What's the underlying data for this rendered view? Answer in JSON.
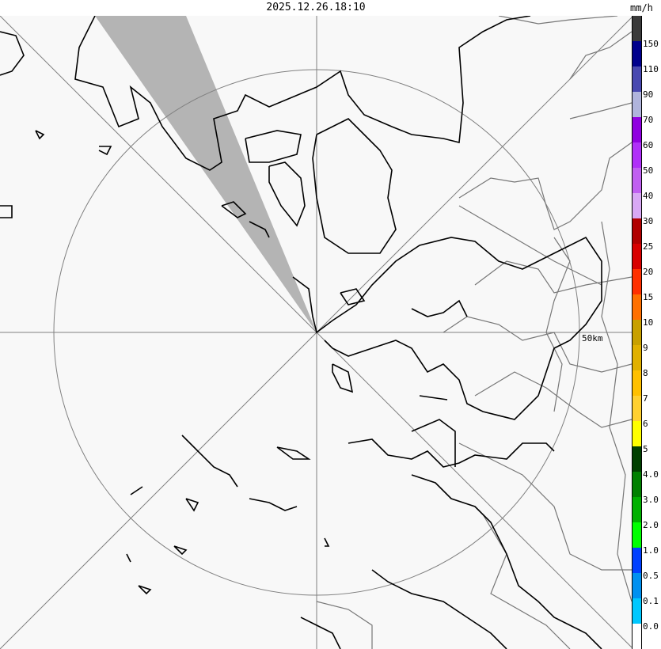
{
  "header": {
    "timestamp": "2025.12.26.18:10"
  },
  "map": {
    "range_label": "50km",
    "background": "#f8f8f8",
    "coastline_color": "#000000",
    "boundary_color": "#808080",
    "blocked_sector_color": "#b4b4b4"
  },
  "legend": {
    "unit": "mm/h",
    "labels": [
      "150",
      "110",
      "90",
      "70",
      "60",
      "50",
      "40",
      "30",
      "25",
      "20",
      "15",
      "10",
      "9",
      "8",
      "7",
      "6",
      "5",
      "4.0",
      "3.0",
      "2.0",
      "1.0",
      "0.5",
      "0.1",
      "0.0"
    ],
    "colors": [
      "#3a3a3a",
      "#00008c",
      "#4848b0",
      "#b0b4dc",
      "#9000e0",
      "#b030f8",
      "#c060f0",
      "#d8a8f4",
      "#b00000",
      "#d80000",
      "#ff3000",
      "#ff7000",
      "#c8a000",
      "#e0b000",
      "#ffc000",
      "#ffd030",
      "#ffff00",
      "#004000",
      "#008000",
      "#00b000",
      "#00ff00",
      "#0040ff",
      "#0090f0",
      "#00c8ff",
      "#ffffff"
    ]
  }
}
